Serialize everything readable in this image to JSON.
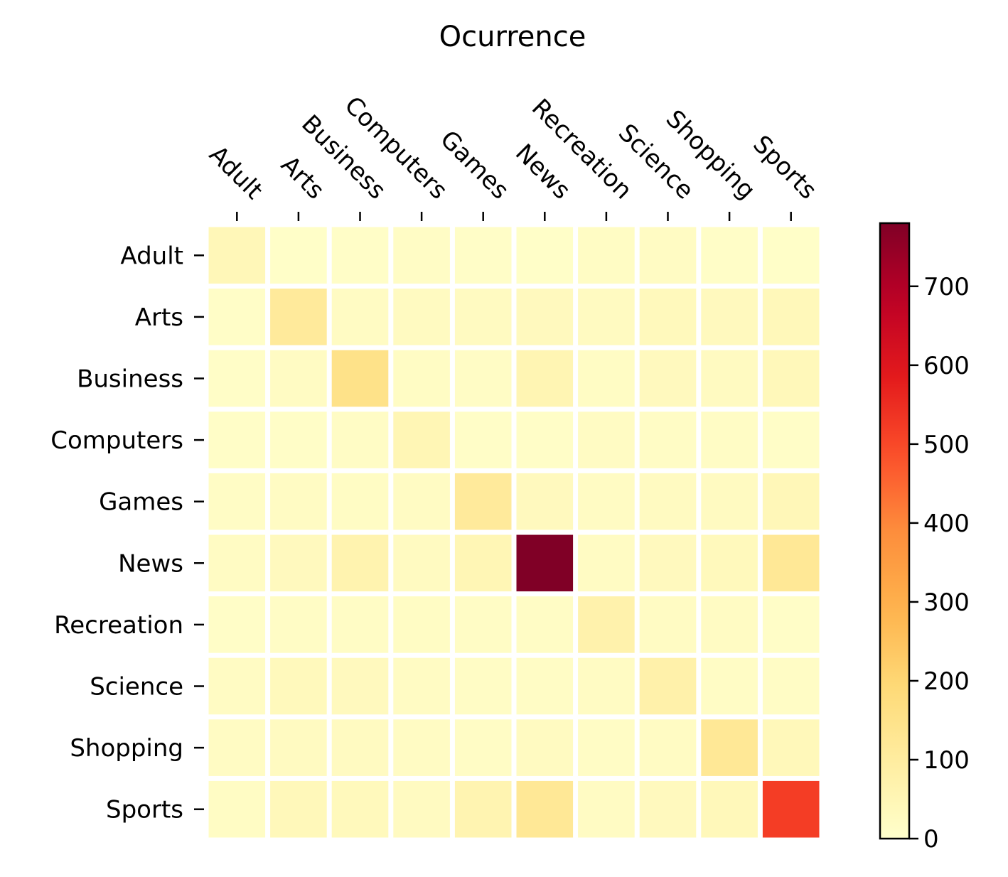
{
  "chart_data": {
    "type": "heatmap",
    "title": "Ocurrence",
    "x_categories": [
      "Adult",
      "Arts",
      "Business",
      "Computers",
      "Games",
      "News",
      "Recreation",
      "Science",
      "Shopping",
      "Sports"
    ],
    "y_categories": [
      "Adult",
      "Arts",
      "Business",
      "Computers",
      "Games",
      "News",
      "Recreation",
      "Science",
      "Shopping",
      "Sports"
    ],
    "values": [
      [
        45,
        8,
        10,
        15,
        10,
        8,
        18,
        20,
        12,
        8
      ],
      [
        12,
        110,
        20,
        25,
        25,
        30,
        25,
        35,
        30,
        40
      ],
      [
        12,
        20,
        150,
        18,
        15,
        55,
        18,
        30,
        25,
        40
      ],
      [
        12,
        10,
        15,
        50,
        10,
        10,
        20,
        15,
        15,
        10
      ],
      [
        15,
        20,
        18,
        20,
        110,
        30,
        20,
        25,
        25,
        45
      ],
      [
        20,
        30,
        65,
        25,
        50,
        780,
        20,
        30,
        35,
        120
      ],
      [
        10,
        15,
        15,
        18,
        15,
        15,
        70,
        20,
        20,
        10
      ],
      [
        20,
        35,
        30,
        20,
        15,
        15,
        20,
        75,
        15,
        15
      ],
      [
        20,
        25,
        25,
        20,
        15,
        25,
        15,
        20,
        120,
        40
      ],
      [
        18,
        40,
        35,
        25,
        60,
        120,
        20,
        30,
        40,
        520
      ]
    ],
    "colormap": "YlOrRd",
    "colorbar": {
      "min": 0,
      "max": 780,
      "ticks": [
        0,
        100,
        200,
        300,
        400,
        500,
        600,
        700
      ]
    },
    "x_axis_position": "top",
    "x_tick_rotation": "-45",
    "grid": false,
    "cell_separator_color": "#ffffff"
  }
}
